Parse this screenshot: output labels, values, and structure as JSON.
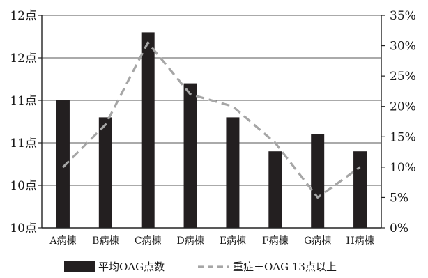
{
  "chart_data": {
    "type": "bar+line",
    "categories": [
      "A病棟",
      "B病棟",
      "C病棟",
      "D病棟",
      "E病棟",
      "F病棟",
      "G病棟",
      "H病棟"
    ],
    "left_axis": {
      "ticks": [
        "12点",
        "12点",
        "11点",
        "11点",
        "10点",
        "10点"
      ],
      "ylim": [
        10.0,
        12.5
      ],
      "step": 0.5
    },
    "right_axis": {
      "ticks": [
        "35%",
        "30%",
        "25%",
        "20%",
        "15%",
        "10%",
        "5%",
        "0%"
      ],
      "ylim": [
        0,
        35
      ],
      "step": 5
    },
    "series": [
      {
        "name": "平均OAG点数",
        "type": "bar",
        "axis": "left",
        "color": "#231f20",
        "values": [
          11.5,
          11.3,
          12.3,
          11.7,
          11.3,
          10.9,
          11.1,
          10.9
        ]
      },
      {
        "name": "重症＋OAG 13点以上",
        "type": "line",
        "style": "dashed",
        "axis": "right",
        "color": "#a6a6a6",
        "values": [
          10,
          17,
          30.5,
          22,
          20,
          14,
          5,
          10
        ]
      }
    ],
    "grid": true,
    "legend_position": "bottom"
  }
}
